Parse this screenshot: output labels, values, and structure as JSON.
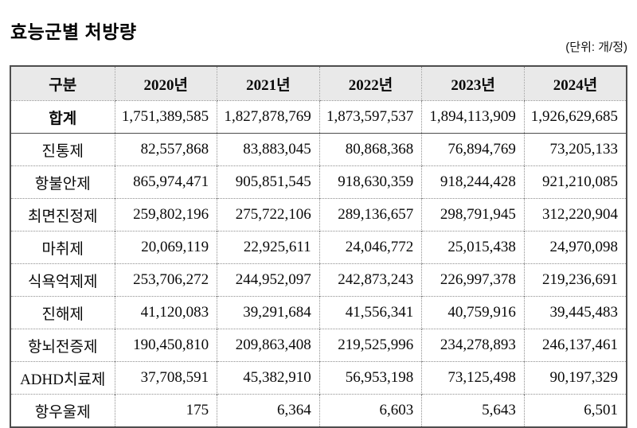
{
  "page": {
    "title": "효능군별 처방량",
    "unit_label": "(단위: 개/정)"
  },
  "colors": {
    "header_bg": "#e9e9e9",
    "outer_border": "#4d4d4d",
    "inner_dotted": "#8f8f8f",
    "text": "#0a0a0a"
  },
  "table": {
    "columns": [
      "구분",
      "2020년",
      "2021년",
      "2022년",
      "2023년",
      "2024년"
    ],
    "rows": [
      {
        "label": "합계",
        "bold": true,
        "values": [
          "1,751,389,585",
          "1,827,878,769",
          "1,873,597,537",
          "1,894,113,909",
          "1,926,629,685"
        ]
      },
      {
        "label": "진통제",
        "values": [
          "82,557,868",
          "83,883,045",
          "80,868,368",
          "76,894,769",
          "73,205,133"
        ]
      },
      {
        "label": "항불안제",
        "values": [
          "865,974,471",
          "905,851,545",
          "918,630,359",
          "918,244,428",
          "921,210,085"
        ]
      },
      {
        "label": "최면진정제",
        "values": [
          "259,802,196",
          "275,722,106",
          "289,136,657",
          "298,791,945",
          "312,220,904"
        ]
      },
      {
        "label": "마취제",
        "values": [
          "20,069,119",
          "22,925,611",
          "24,046,772",
          "25,015,438",
          "24,970,098"
        ]
      },
      {
        "label": "식욕억제제",
        "values": [
          "253,706,272",
          "244,952,097",
          "242,873,243",
          "226,997,378",
          "219,236,691"
        ]
      },
      {
        "label": "진해제",
        "values": [
          "41,120,083",
          "39,291,684",
          "41,556,341",
          "40,759,916",
          "39,445,483"
        ]
      },
      {
        "label": "항뇌전증제",
        "values": [
          "190,450,810",
          "209,863,408",
          "219,525,996",
          "234,278,893",
          "246,137,461"
        ]
      },
      {
        "label": "ADHD치료제",
        "values": [
          "37,708,591",
          "45,382,910",
          "56,953,198",
          "73,125,498",
          "90,197,329"
        ]
      },
      {
        "label": "항우울제",
        "values": [
          "175",
          "6,364",
          "6,603",
          "5,643",
          "6,501"
        ]
      }
    ]
  }
}
